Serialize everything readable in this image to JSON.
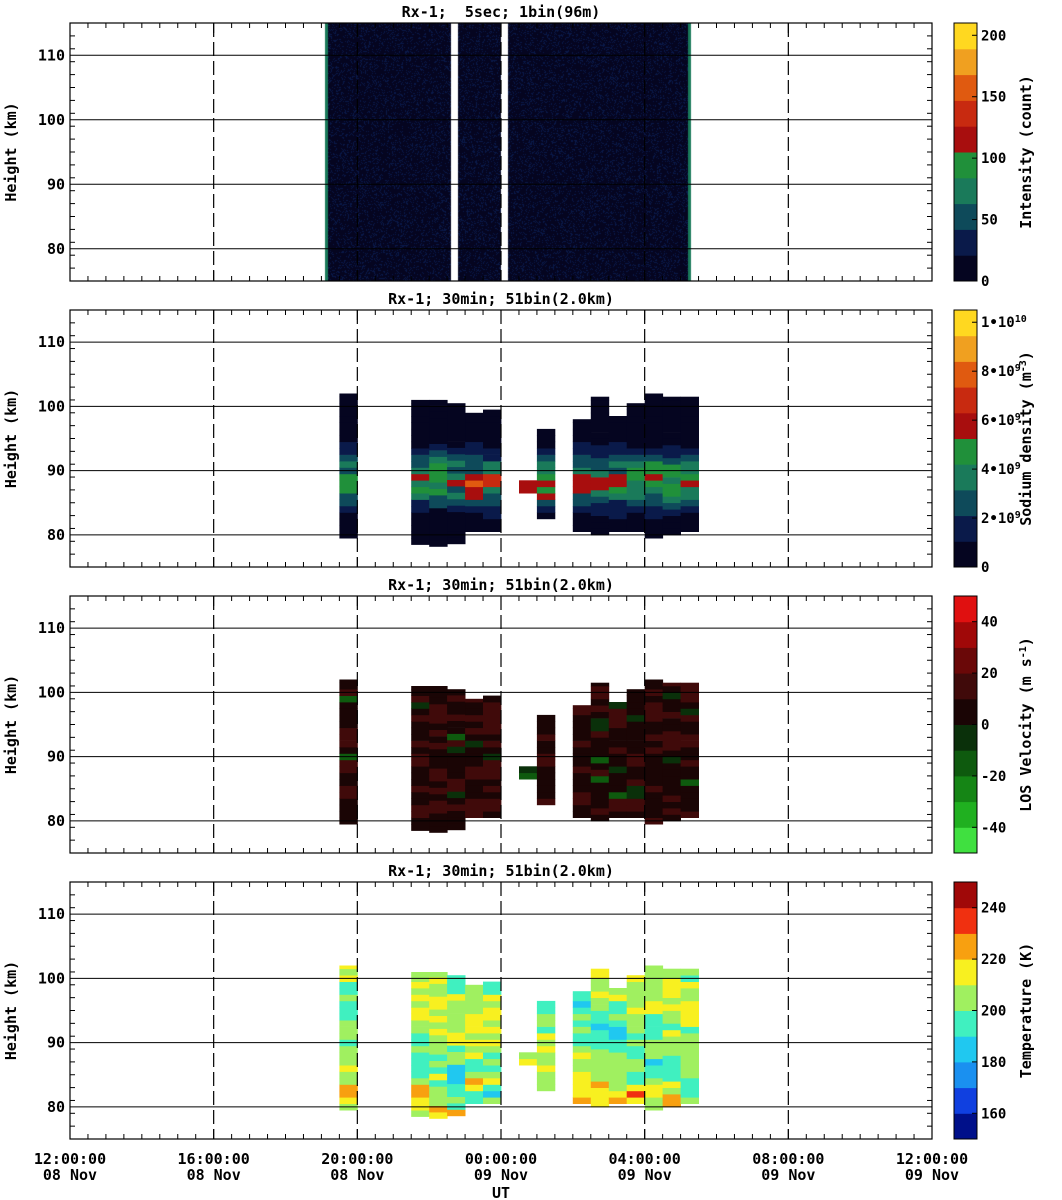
{
  "chart_data": [
    {
      "type": "heatmap",
      "title": "Rx-1;  5sec; 1bin(96m)",
      "ylabel": "Height (km)",
      "colorbar_label": "Intensity (count)",
      "colorbar_ticks": [
        "0",
        "50",
        "100",
        "150",
        "200"
      ],
      "colorbar_range": [
        0,
        210
      ],
      "colorbar_colors": [
        "#050520",
        "#0a1a4a",
        "#0e4a5a",
        "#1a7a5a",
        "#20903a",
        "#a80e0e",
        "#c82a10",
        "#e05a10",
        "#f0a020",
        "#ffd820"
      ],
      "xlim_hours": [
        0,
        24
      ],
      "ylim": [
        75,
        115
      ],
      "y_ticks": [
        80,
        90,
        100,
        110
      ],
      "observation": {
        "start_hour": 7.1,
        "end_hour": 17.3
      },
      "gaps_hours": [
        [
          10.6,
          10.8
        ],
        [
          12.0,
          12.2
        ]
      ],
      "layer": {
        "center_km": 88,
        "bottom_km": 81,
        "top_km": 99
      }
    },
    {
      "type": "heatmap",
      "title": "Rx-1; 30min; 51bin(2.0km)",
      "ylabel": "Height (km)",
      "colorbar_label": "Sodium density (m^-3)",
      "colorbar_ticks": [
        "0",
        "2•10^9",
        "4•10^9",
        "6•10^9",
        "8•10^9",
        "1•10^10"
      ],
      "colorbar_range": [
        0,
        10500000000.0
      ],
      "colorbar_colors": [
        "#050520",
        "#0a1a4a",
        "#0e4a5a",
        "#1a7a5a",
        "#20903a",
        "#a80e0e",
        "#c82a10",
        "#e05a10",
        "#f0a020",
        "#ffd820"
      ],
      "xlim_hours": [
        0,
        24
      ],
      "ylim": [
        75,
        115
      ],
      "y_ticks": [
        80,
        90,
        100,
        110
      ]
    },
    {
      "type": "heatmap",
      "title": "Rx-1; 30min; 51bin(2.0km)",
      "ylabel": "Height (km)",
      "colorbar_label": "LOS Velocity (m s^-1)",
      "colorbar_ticks": [
        "-40",
        "-20",
        "0",
        "20",
        "40"
      ],
      "colorbar_range": [
        -50,
        50
      ],
      "colorbar_colors": [
        "#40e040",
        "#20b020",
        "#158515",
        "#0e5a0e",
        "#0a300a",
        "#1a0505",
        "#400a0a",
        "#6a0808",
        "#a00808",
        "#e01010"
      ],
      "xlim_hours": [
        0,
        24
      ],
      "ylim": [
        75,
        115
      ],
      "y_ticks": [
        80,
        90,
        100,
        110
      ]
    },
    {
      "type": "heatmap",
      "title": "Rx-1; 30min; 51bin(2.0km)",
      "ylabel": "Height (km)",
      "xlabel": "UT",
      "colorbar_label": "Temperature (K)",
      "colorbar_ticks": [
        "160",
        "180",
        "200",
        "220",
        "240"
      ],
      "colorbar_range": [
        150,
        250
      ],
      "colorbar_colors": [
        "#00108a",
        "#1040e0",
        "#1a90f0",
        "#20c8f0",
        "#40f0c0",
        "#a0f060",
        "#f8f020",
        "#f8a010",
        "#f03010",
        "#a00808"
      ],
      "xlim_hours": [
        0,
        24
      ],
      "ylim": [
        75,
        115
      ],
      "y_ticks": [
        80,
        90,
        100,
        110
      ],
      "x_ticks": [
        {
          "time": "12:00:00",
          "date": "08 Nov"
        },
        {
          "time": "16:00:00",
          "date": "08 Nov"
        },
        {
          "time": "20:00:00",
          "date": "08 Nov"
        },
        {
          "time": "00:00:00",
          "date": "09 Nov"
        },
        {
          "time": "04:00:00",
          "date": "09 Nov"
        },
        {
          "time": "08:00:00",
          "date": "09 Nov"
        },
        {
          "time": "12:00:00",
          "date": "09 Nov"
        }
      ]
    }
  ],
  "profiles_30min": [
    {
      "center_hour": 7.75,
      "bottom_km": 79.5,
      "top_km": 102
    },
    {
      "center_hour": 9.75,
      "bottom_km": 78.5,
      "top_km": 101
    },
    {
      "center_hour": 10.25,
      "bottom_km": 78.2,
      "top_km": 101
    },
    {
      "center_hour": 10.75,
      "bottom_km": 78.6,
      "top_km": 100.5
    },
    {
      "center_hour": 11.25,
      "bottom_km": 80.5,
      "top_km": 99
    },
    {
      "center_hour": 11.75,
      "bottom_km": 80.5,
      "top_km": 99.5
    },
    {
      "center_hour": 12.75,
      "bottom_km": 86.5,
      "top_km": 88.5
    },
    {
      "center_hour": 13.25,
      "bottom_km": 82.5,
      "top_km": 96.5
    },
    {
      "center_hour": 14.25,
      "bottom_km": 80.5,
      "top_km": 98
    },
    {
      "center_hour": 14.75,
      "bottom_km": 80,
      "top_km": 101.5
    },
    {
      "center_hour": 15.25,
      "bottom_km": 80.5,
      "top_km": 98.5
    },
    {
      "center_hour": 15.75,
      "bottom_km": 80.5,
      "top_km": 100.5
    },
    {
      "center_hour": 16.25,
      "bottom_km": 79.5,
      "top_km": 102
    },
    {
      "center_hour": 16.75,
      "bottom_km": 80,
      "top_km": 101.5
    },
    {
      "center_hour": 17.25,
      "bottom_km": 80.5,
      "top_km": 101.5
    }
  ]
}
